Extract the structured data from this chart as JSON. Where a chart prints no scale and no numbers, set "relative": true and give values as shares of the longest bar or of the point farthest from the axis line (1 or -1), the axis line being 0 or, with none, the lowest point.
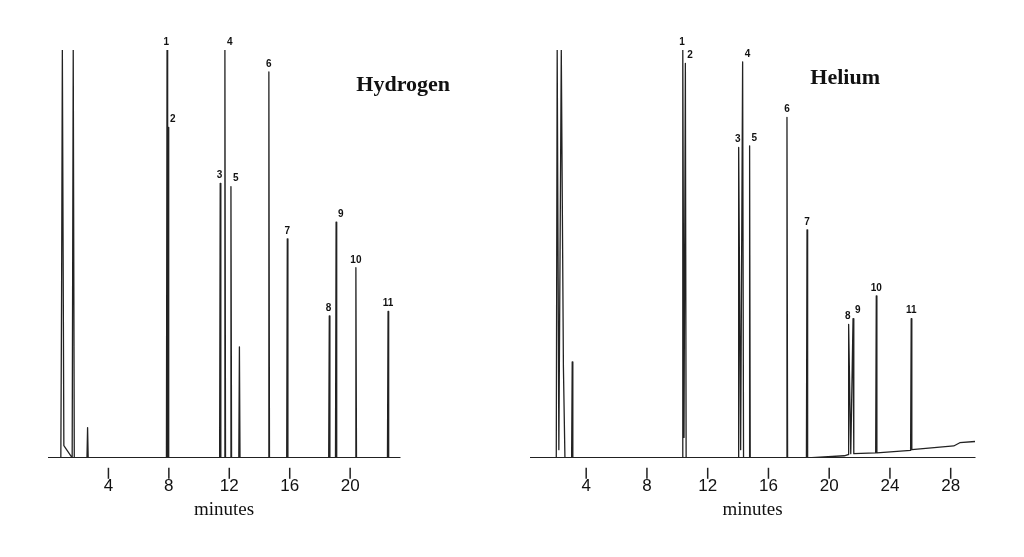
{
  "chart_data": [
    {
      "type": "line",
      "title": "Hydrogen",
      "xlabel": "minutes",
      "relative": true,
      "marker": "none",
      "xlim": [
        0,
        23.3
      ],
      "xticks": [
        4,
        8,
        12,
        16,
        20
      ],
      "series": [
        {
          "color": "#222222",
          "x": [
            0,
            0.85,
            0.9,
            0.95,
            1.05,
            1.6,
            1.67,
            1.74,
            2.58,
            2.62,
            2.66,
            7.84,
            7.88,
            7.92,
            7.95,
            7.99,
            11.36,
            11.4,
            11.44,
            11.67,
            11.71,
            11.75,
            12.07,
            12.11,
            12.15,
            12.63,
            12.67,
            12.71,
            14.58,
            14.62,
            14.66,
            15.8,
            15.84,
            15.88,
            18.58,
            18.62,
            18.66,
            19.03,
            19.07,
            19.11,
            20.34,
            20.38,
            20.42,
            22.47,
            22.51,
            22.55,
            23.3
          ],
          "values": [
            0,
            0,
            0.41,
            1.0,
            0.03,
            0,
            1.0,
            0,
            0,
            0.074,
            0,
            0,
            1.0,
            0,
            0.81,
            0,
            0,
            0.673,
            0,
            0,
            1.0,
            0,
            0,
            0.665,
            0,
            0,
            0.272,
            0,
            0,
            0.946,
            0,
            0,
            0.537,
            0,
            0,
            0.348,
            0,
            0,
            0.578,
            0,
            0,
            0.466,
            0,
            0,
            0.359,
            0,
            0
          ]
        }
      ],
      "annotations": [
        {
          "text": "1",
          "x": 7.88,
          "y": 1.0
        },
        {
          "text": "2",
          "x": 7.95,
          "y": 0.81
        },
        {
          "text": "3",
          "x": 11.4,
          "y": 0.673
        },
        {
          "text": "4",
          "x": 11.71,
          "y": 1.0
        },
        {
          "text": "5",
          "x": 12.11,
          "y": 0.665
        },
        {
          "text": "6",
          "x": 14.62,
          "y": 0.946
        },
        {
          "text": "7",
          "x": 15.84,
          "y": 0.537
        },
        {
          "text": "8",
          "x": 18.62,
          "y": 0.348
        },
        {
          "text": "9",
          "x": 19.07,
          "y": 0.578
        },
        {
          "text": "10",
          "x": 20.38,
          "y": 0.466
        },
        {
          "text": "11",
          "x": 22.51,
          "y": 0.359
        }
      ]
    },
    {
      "type": "line",
      "title": "Helium",
      "xlabel": "minutes",
      "relative": true,
      "marker": "none",
      "xlim": [
        0.3,
        29.6
      ],
      "xticks": [
        4,
        8,
        12,
        16,
        20,
        24,
        28
      ],
      "series": [
        {
          "color": "#222222",
          "x": [
            0.3,
            2.03,
            2.09,
            2.2,
            2.36,
            2.5,
            2.6,
            3.04,
            3.08,
            3.12,
            10.32,
            10.36,
            10.44,
            10.53,
            10.58,
            14.0,
            14.04,
            14.17,
            14.3,
            14.36,
            14.72,
            14.76,
            14.8,
            17.18,
            17.22,
            17.26,
            18.5,
            18.54,
            18.58,
            21.0,
            21.24,
            21.28,
            21.42,
            21.57,
            21.62,
            23.06,
            23.1,
            23.14,
            25.36,
            25.4,
            25.44,
            28.2,
            28.6,
            29.6
          ],
          "values": [
            0,
            0,
            1.0,
            0.02,
            1.0,
            0.222,
            0,
            0,
            0.235,
            0,
            0,
            1.0,
            0.05,
            0.967,
            0,
            0,
            0.761,
            0.02,
            0.971,
            0,
            0,
            0.765,
            0,
            0,
            0.835,
            0,
            0,
            0.559,
            0,
            0.005,
            0.008,
            0.327,
            0.01,
            0.341,
            0.01,
            0.012,
            0.397,
            0.012,
            0.018,
            0.341,
            0.02,
            0.029,
            0.037,
            0.04
          ]
        }
      ],
      "annotations": [
        {
          "text": "1",
          "x": 10.36,
          "y": 1.0
        },
        {
          "text": "2",
          "x": 10.53,
          "y": 0.967
        },
        {
          "text": "3",
          "x": 14.04,
          "y": 0.761
        },
        {
          "text": "4",
          "x": 14.3,
          "y": 0.971
        },
        {
          "text": "5",
          "x": 14.76,
          "y": 0.765
        },
        {
          "text": "6",
          "x": 17.22,
          "y": 0.835
        },
        {
          "text": "7",
          "x": 18.54,
          "y": 0.559
        },
        {
          "text": "8",
          "x": 21.28,
          "y": 0.327
        },
        {
          "text": "9",
          "x": 21.57,
          "y": 0.341
        },
        {
          "text": "10",
          "x": 23.1,
          "y": 0.397
        },
        {
          "text": "11",
          "x": 25.4,
          "y": 0.341
        }
      ]
    }
  ]
}
